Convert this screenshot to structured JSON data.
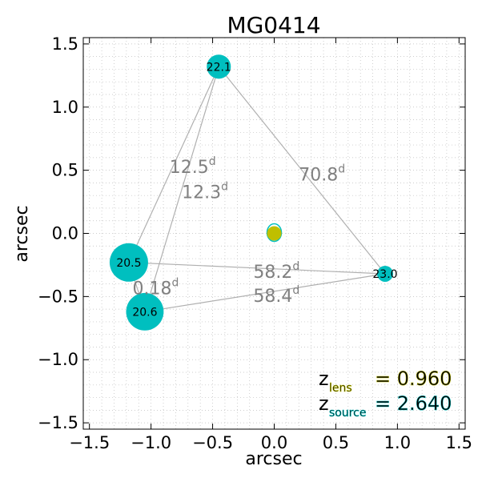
{
  "chart_data": {
    "type": "scatter",
    "title": "MG0414",
    "xlabel": "arcsec",
    "ylabel": "arcsec",
    "xlim": [
      -1.55,
      1.55
    ],
    "ylim": [
      -1.55,
      1.55
    ],
    "xticks": [
      -1.5,
      -1.0,
      -0.5,
      0.0,
      0.5,
      1.0,
      1.5
    ],
    "xtick_labels": [
      "−1.5",
      "−1.0",
      "−0.5",
      "0.0",
      "0.5",
      "1.0",
      "1.5"
    ],
    "yticks": [
      1.5,
      1.0,
      0.5,
      0.0,
      -0.5,
      -1.0,
      -1.5
    ],
    "ytick_labels": [
      "1.5",
      "1.0",
      "0.5",
      "0.0",
      "−0.5",
      "−1.0",
      "−1.5"
    ],
    "grid": true,
    "colors": {
      "image": "#00bfbf",
      "lens": "#bfbf00",
      "source": "#00bfbf",
      "arrival_lines": "#b0b0b0",
      "delay_text": "#808080"
    },
    "images": [
      {
        "label": "22.1",
        "x": -0.45,
        "y": 1.32
      },
      {
        "label": "20.5",
        "x": -1.18,
        "y": -0.23
      },
      {
        "label": "20.6",
        "x": -1.05,
        "y": -0.62
      },
      {
        "label": "23.0",
        "x": 0.9,
        "y": -0.32
      }
    ],
    "lens": {
      "x": 0.0,
      "y": 0.0
    },
    "time_delays": [
      {
        "value": "12.5",
        "unit": "d",
        "x": -0.85,
        "y": 0.53
      },
      {
        "value": "12.3",
        "unit": "d",
        "x": -0.75,
        "y": 0.33
      },
      {
        "value": "70.8",
        "unit": "d",
        "x": 0.2,
        "y": 0.47
      },
      {
        "value": "58.2",
        "unit": "d",
        "x": -0.17,
        "y": -0.3
      },
      {
        "value": "0.18",
        "unit": "d",
        "x": -1.15,
        "y": -0.43
      },
      {
        "value": "58.4",
        "unit": "d",
        "x": -0.17,
        "y": -0.49
      }
    ],
    "redshifts": [
      {
        "symbol": "z",
        "subscript": "lens",
        "value": "= 0.960"
      },
      {
        "symbol": "z",
        "subscript": "source",
        "value": "= 2.640"
      }
    ]
  }
}
